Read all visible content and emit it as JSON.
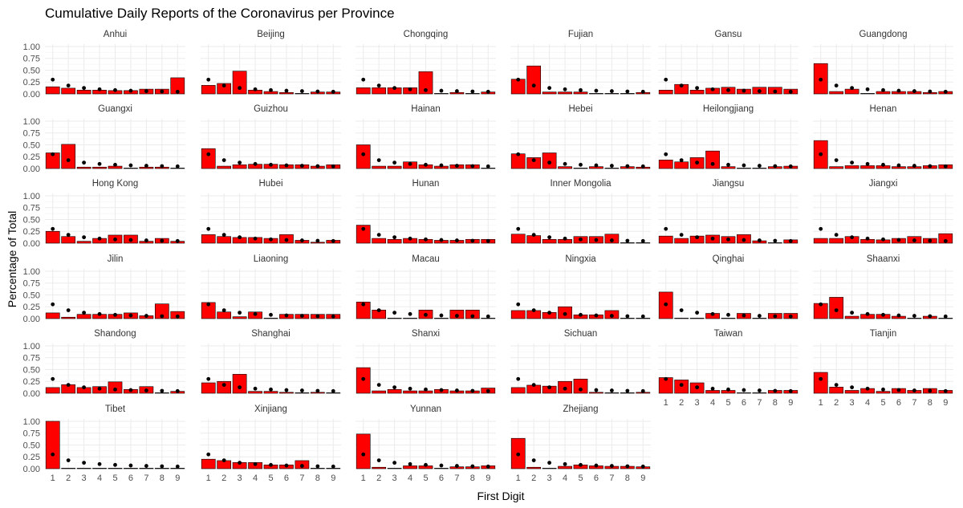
{
  "chart_data": {
    "type": "bar",
    "title": "Cumulative Daily Reports of the Coronavirus per Province",
    "xlabel": "First Digit",
    "ylabel": "Percentage of Total",
    "ylim": [
      0,
      1.05
    ],
    "y_ticks": [
      "0.00",
      "0.25",
      "0.50",
      "0.75",
      "1.00"
    ],
    "categories": [
      "1",
      "2",
      "3",
      "4",
      "5",
      "6",
      "7",
      "8",
      "9"
    ],
    "layout": "facet-grid",
    "grid": true,
    "colors": {
      "bar_fill": "#ff0000",
      "bar_stroke": "#000000",
      "point": "#000000",
      "grid": "#ebebeb"
    },
    "reference": {
      "type": "points",
      "values": [
        0.301,
        0.176,
        0.125,
        0.097,
        0.079,
        0.067,
        0.058,
        0.051,
        0.046
      ]
    },
    "panels": [
      {
        "name": "Anhui",
        "values": [
          0.15,
          0.12,
          0.08,
          0.08,
          0.07,
          0.07,
          0.1,
          0.1,
          0.34
        ]
      },
      {
        "name": "Beijing",
        "values": [
          0.18,
          0.22,
          0.48,
          0.08,
          0.05,
          0.03,
          0.0,
          0.04,
          0.04
        ]
      },
      {
        "name": "Chongqing",
        "values": [
          0.13,
          0.13,
          0.13,
          0.13,
          0.47,
          0.0,
          0.03,
          0.0,
          0.04
        ]
      },
      {
        "name": "Fujian",
        "values": [
          0.31,
          0.59,
          0.04,
          0.04,
          0.04,
          0.0,
          0.0,
          0.0,
          0.03
        ]
      },
      {
        "name": "Gansu",
        "values": [
          0.08,
          0.2,
          0.08,
          0.12,
          0.14,
          0.1,
          0.14,
          0.14,
          0.1
        ]
      },
      {
        "name": "Guangdong",
        "values": [
          0.64,
          0.05,
          0.1,
          0.0,
          0.05,
          0.05,
          0.05,
          0.03,
          0.05
        ]
      },
      {
        "name": "Guangxi",
        "values": [
          0.33,
          0.51,
          0.03,
          0.03,
          0.05,
          0.0,
          0.03,
          0.03,
          0.0
        ]
      },
      {
        "name": "Guizhou",
        "values": [
          0.42,
          0.05,
          0.08,
          0.09,
          0.09,
          0.08,
          0.08,
          0.05,
          0.08
        ]
      },
      {
        "name": "Hainan",
        "values": [
          0.5,
          0.05,
          0.05,
          0.14,
          0.08,
          0.05,
          0.08,
          0.08,
          0.0
        ]
      },
      {
        "name": "Hebei",
        "values": [
          0.31,
          0.23,
          0.33,
          0.04,
          0.0,
          0.04,
          0.0,
          0.04,
          0.03
        ]
      },
      {
        "name": "Heilongjiang",
        "values": [
          0.18,
          0.14,
          0.23,
          0.37,
          0.04,
          0.0,
          0.0,
          0.04,
          0.05
        ]
      },
      {
        "name": "Henan",
        "values": [
          0.59,
          0.04,
          0.06,
          0.06,
          0.06,
          0.04,
          0.04,
          0.06,
          0.08
        ]
      },
      {
        "name": "Hong Kong",
        "values": [
          0.25,
          0.14,
          0.04,
          0.1,
          0.17,
          0.17,
          0.04,
          0.1,
          0.04
        ]
      },
      {
        "name": "Hubei",
        "values": [
          0.18,
          0.14,
          0.12,
          0.12,
          0.1,
          0.18,
          0.06,
          0.02,
          0.06
        ]
      },
      {
        "name": "Hunan",
        "values": [
          0.38,
          0.1,
          0.08,
          0.1,
          0.08,
          0.06,
          0.06,
          0.08,
          0.08
        ]
      },
      {
        "name": "Inner Mongolia",
        "values": [
          0.19,
          0.16,
          0.08,
          0.08,
          0.14,
          0.14,
          0.19,
          0.0,
          0.0
        ]
      },
      {
        "name": "Jiangsu",
        "values": [
          0.15,
          0.1,
          0.15,
          0.17,
          0.14,
          0.18,
          0.05,
          0.0,
          0.07
        ]
      },
      {
        "name": "Jiangxi",
        "values": [
          0.1,
          0.1,
          0.14,
          0.08,
          0.07,
          0.1,
          0.14,
          0.1,
          0.2
        ]
      },
      {
        "name": "Jilin",
        "values": [
          0.12,
          0.03,
          0.09,
          0.09,
          0.09,
          0.12,
          0.06,
          0.31,
          0.15
        ]
      },
      {
        "name": "Liaoning",
        "values": [
          0.34,
          0.14,
          0.04,
          0.14,
          0.0,
          0.09,
          0.09,
          0.09,
          0.09
        ]
      },
      {
        "name": "Macau",
        "values": [
          0.35,
          0.18,
          0.0,
          0.0,
          0.18,
          0.0,
          0.18,
          0.18,
          0.0
        ]
      },
      {
        "name": "Ningxia",
        "values": [
          0.17,
          0.17,
          0.13,
          0.25,
          0.08,
          0.08,
          0.17,
          0.0,
          0.0
        ]
      },
      {
        "name": "Qinghai",
        "values": [
          0.56,
          0.0,
          0.0,
          0.11,
          0.0,
          0.11,
          0.0,
          0.11,
          0.11
        ]
      },
      {
        "name": "Shaanxi",
        "values": [
          0.32,
          0.45,
          0.05,
          0.09,
          0.09,
          0.05,
          0.0,
          0.05,
          0.0
        ]
      },
      {
        "name": "Shandong",
        "values": [
          0.12,
          0.18,
          0.12,
          0.14,
          0.24,
          0.08,
          0.14,
          0.0,
          0.04
        ]
      },
      {
        "name": "Shanghai",
        "values": [
          0.22,
          0.25,
          0.4,
          0.04,
          0.04,
          0.02,
          0.0,
          0.02,
          0.0
        ]
      },
      {
        "name": "Shanxi",
        "values": [
          0.54,
          0.05,
          0.08,
          0.05,
          0.05,
          0.08,
          0.05,
          0.05,
          0.11
        ]
      },
      {
        "name": "Sichuan",
        "values": [
          0.12,
          0.17,
          0.15,
          0.25,
          0.3,
          0.02,
          0.0,
          0.0,
          0.02
        ]
      },
      {
        "name": "Taiwan",
        "values": [
          0.33,
          0.28,
          0.22,
          0.06,
          0.06,
          0.0,
          0.0,
          0.06,
          0.06
        ]
      },
      {
        "name": "Tianjin",
        "values": [
          0.44,
          0.13,
          0.06,
          0.1,
          0.04,
          0.1,
          0.06,
          0.1,
          0.06
        ]
      },
      {
        "name": "Tibet",
        "values": [
          1.0,
          0.0,
          0.0,
          0.0,
          0.0,
          0.0,
          0.0,
          0.0,
          0.0
        ]
      },
      {
        "name": "Xinjiang",
        "values": [
          0.2,
          0.17,
          0.13,
          0.13,
          0.08,
          0.08,
          0.17,
          0.0,
          0.0
        ]
      },
      {
        "name": "Yunnan",
        "values": [
          0.73,
          0.03,
          0.0,
          0.06,
          0.06,
          0.0,
          0.04,
          0.04,
          0.06
        ]
      },
      {
        "name": "Zhejiang",
        "values": [
          0.64,
          0.03,
          0.0,
          0.05,
          0.08,
          0.06,
          0.05,
          0.05,
          0.04
        ]
      }
    ]
  }
}
